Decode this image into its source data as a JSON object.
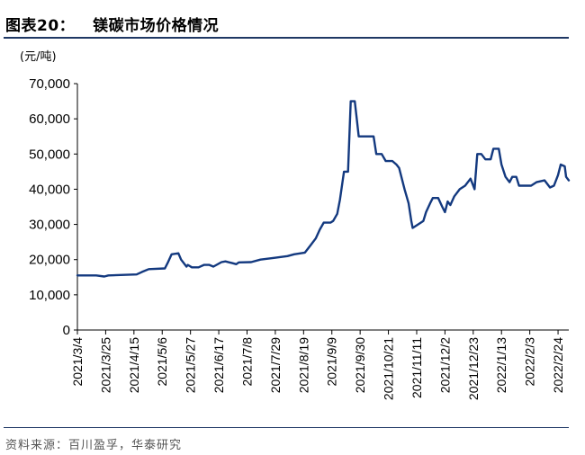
{
  "header": {
    "figure_label": "图表20：",
    "title": "镁碳市场价格情况"
  },
  "footer": {
    "source": "资料来源：百川盈孚，华泰研究"
  },
  "colors": {
    "line": "#13397f",
    "rule": "#1f3864"
  },
  "chart_data": {
    "type": "line",
    "title": "镁碳市场价格情况",
    "ylabel": "(元/吨)",
    "xlabel": "",
    "ylim": [
      0,
      70000
    ],
    "yticks": [
      0,
      10000,
      20000,
      30000,
      40000,
      50000,
      60000,
      70000
    ],
    "ytick_labels": [
      "0",
      "10,000",
      "20,000",
      "30,000",
      "40,000",
      "50,000",
      "60,000",
      "70,000"
    ],
    "xlim": [
      "2021-03-04",
      "2022-03-04"
    ],
    "xtick_labels": [
      "2021/3/4",
      "2021/3/25",
      "2021/4/15",
      "2021/5/6",
      "2021/5/27",
      "2021/6/17",
      "2021/7/8",
      "2021/7/29",
      "2021/8/19",
      "2021/9/9",
      "2021/9/30",
      "2021/10/21",
      "2021/11/11",
      "2021/12/2",
      "2021/12/23",
      "2022/1/13",
      "2022/2/3",
      "2022/2/24"
    ],
    "grid": false,
    "legend": "none",
    "series": [
      {
        "points": [
          [
            "2021-03-04",
            15500
          ],
          [
            "2021-03-18",
            15500
          ],
          [
            "2021-03-24",
            15200
          ],
          [
            "2021-03-27",
            15500
          ],
          [
            "2021-04-17",
            15800
          ],
          [
            "2021-04-21",
            16500
          ],
          [
            "2021-04-26",
            17300
          ],
          [
            "2021-05-08",
            17500
          ],
          [
            "2021-05-10",
            19000
          ],
          [
            "2021-05-13",
            21500
          ],
          [
            "2021-05-18",
            21800
          ],
          [
            "2021-05-20",
            20000
          ],
          [
            "2021-05-24",
            18000
          ],
          [
            "2021-05-25",
            18500
          ],
          [
            "2021-05-28",
            17800
          ],
          [
            "2021-06-02",
            17800
          ],
          [
            "2021-06-06",
            18500
          ],
          [
            "2021-06-10",
            18500
          ],
          [
            "2021-06-13",
            18000
          ],
          [
            "2021-06-19",
            19300
          ],
          [
            "2021-06-22",
            19500
          ],
          [
            "2021-06-27",
            19000
          ],
          [
            "2021-06-30",
            18700
          ],
          [
            "2021-07-02",
            19200
          ],
          [
            "2021-07-11",
            19300
          ],
          [
            "2021-07-18",
            20000
          ],
          [
            "2021-07-28",
            20500
          ],
          [
            "2021-08-07",
            21000
          ],
          [
            "2021-08-12",
            21500
          ],
          [
            "2021-08-20",
            22000
          ],
          [
            "2021-08-24",
            24000
          ],
          [
            "2021-08-28",
            26000
          ],
          [
            "2021-08-31",
            28500
          ],
          [
            "2021-09-03",
            30500
          ],
          [
            "2021-09-08",
            30500
          ],
          [
            "2021-09-10",
            31000
          ],
          [
            "2021-09-13",
            33000
          ],
          [
            "2021-09-15",
            37000
          ],
          [
            "2021-09-18",
            45000
          ],
          [
            "2021-09-21",
            45000
          ],
          [
            "2021-09-23",
            65000
          ],
          [
            "2021-09-26",
            65000
          ],
          [
            "2021-09-29",
            55000
          ],
          [
            "2021-10-05",
            55000
          ],
          [
            "2021-10-10",
            55000
          ],
          [
            "2021-10-12",
            50000
          ],
          [
            "2021-10-16",
            50000
          ],
          [
            "2021-10-19",
            48000
          ],
          [
            "2021-10-24",
            48000
          ],
          [
            "2021-10-27",
            47000
          ],
          [
            "2021-10-29",
            46000
          ],
          [
            "2021-10-31",
            43000
          ],
          [
            "2021-11-02",
            40000
          ],
          [
            "2021-11-05",
            36000
          ],
          [
            "2021-11-07",
            31000
          ],
          [
            "2021-11-08",
            29000
          ],
          [
            "2021-11-12",
            30000
          ],
          [
            "2021-11-16",
            31000
          ],
          [
            "2021-11-18",
            33500
          ],
          [
            "2021-11-21",
            36000
          ],
          [
            "2021-11-23",
            37500
          ],
          [
            "2021-11-27",
            37500
          ],
          [
            "2021-11-30",
            35000
          ],
          [
            "2021-12-02",
            33500
          ],
          [
            "2021-12-04",
            36500
          ],
          [
            "2021-12-06",
            35500
          ],
          [
            "2021-12-09",
            38000
          ],
          [
            "2021-12-13",
            40000
          ],
          [
            "2021-12-17",
            41000
          ],
          [
            "2021-12-21",
            43000
          ],
          [
            "2021-12-24",
            40000
          ],
          [
            "2021-12-26",
            50000
          ],
          [
            "2021-12-29",
            50000
          ],
          [
            "2022-01-01",
            48500
          ],
          [
            "2022-01-05",
            48500
          ],
          [
            "2022-01-07",
            51500
          ],
          [
            "2022-01-11",
            51500
          ],
          [
            "2022-01-13",
            47000
          ],
          [
            "2022-01-16",
            43500
          ],
          [
            "2022-01-19",
            42000
          ],
          [
            "2022-01-21",
            43500
          ],
          [
            "2022-01-24",
            43500
          ],
          [
            "2022-01-26",
            41000
          ],
          [
            "2022-02-04",
            41000
          ],
          [
            "2022-02-08",
            42000
          ],
          [
            "2022-02-14",
            42500
          ],
          [
            "2022-02-18",
            40500
          ],
          [
            "2022-02-21",
            41000
          ],
          [
            "2022-02-24",
            44000
          ],
          [
            "2022-02-26",
            47000
          ],
          [
            "2022-03-01",
            46500
          ],
          [
            "2022-03-02",
            43500
          ],
          [
            "2022-03-04",
            42500
          ]
        ]
      }
    ]
  }
}
